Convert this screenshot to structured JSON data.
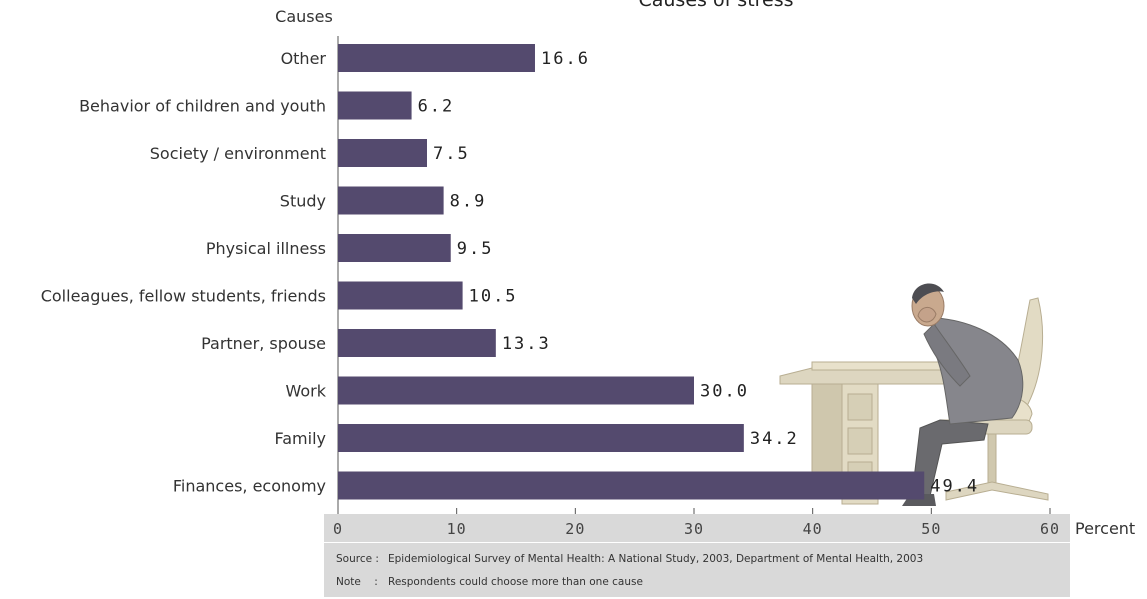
{
  "chart_data": {
    "type": "bar",
    "orientation": "horizontal",
    "title": "Causes of stress",
    "ylabel": "Causes",
    "xlabel": "Percent",
    "categories": [
      "Other",
      "Behavior of children and youth",
      "Society / environment",
      "Study",
      "Physical illness",
      "Colleagues, fellow students, friends",
      "Partner, spouse",
      "Work",
      "Family",
      "Finances, economy"
    ],
    "values": [
      16.6,
      6.2,
      7.5,
      8.9,
      9.5,
      10.5,
      13.3,
      30.0,
      34.2,
      49.4
    ],
    "value_labels": [
      "16.6",
      "6.2",
      "7.5",
      "8.9",
      "9.5",
      "10.5",
      "13.3",
      "30.0",
      "34.2",
      "49.4"
    ],
    "xlim": [
      0,
      60
    ],
    "xticks": [
      "0",
      "10",
      "20",
      "30",
      "40",
      "50",
      "60"
    ],
    "grid": false,
    "bar_color": "#544a6e",
    "axis_band_color": "#d9d9d9"
  },
  "footnote": {
    "source_label": "Source :",
    "source_text": "Epidemiological Survey of Mental Health: A National Study, 2003, Department of Mental Health, 2003",
    "note_label": "Note    :",
    "note_text": "Respondents could choose more than one cause"
  },
  "illustration": {
    "icon": "stressed-man-at-desk-illustration"
  }
}
